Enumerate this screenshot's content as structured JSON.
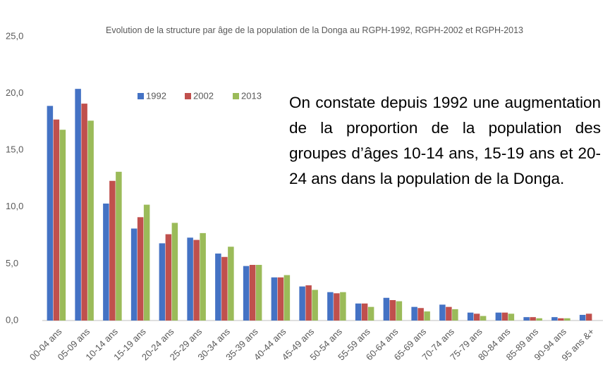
{
  "chart_data": {
    "type": "bar",
    "title": "Evolution de la structure par âge de la population de la Donga au RGPH-1992, RGPH-2002 et RGPH-2013",
    "annotation": "On constate depuis 1992 une augmentation de la proportion de la population des groupes d’âges 10-14 ans, 15-19 ans et 20-24 ans dans la population de la Donga.",
    "categories": [
      "00-04 ans",
      "05-09 ans",
      "10-14 ans",
      "15-19 ans",
      "20-24 ans",
      "25-29 ans",
      "30-34 ans",
      "35-39 ans",
      "40-44 ans",
      "45-49 ans",
      "50-54 ans",
      "55-59 ans",
      "60-64 ans",
      "65-69 ans",
      "70-74 ans",
      "75-79 ans",
      "80-84 ans",
      "85-89 ans",
      "90-94 ans",
      "95 ans &+"
    ],
    "series": [
      {
        "name": "1992",
        "color": "#4472c4",
        "values": [
          18.9,
          20.4,
          10.3,
          8.1,
          6.8,
          7.3,
          5.9,
          4.8,
          3.8,
          3.0,
          2.5,
          1.5,
          2.0,
          1.2,
          1.4,
          0.7,
          0.7,
          0.3,
          0.3,
          0.5
        ]
      },
      {
        "name": "2002",
        "color": "#c0504d",
        "values": [
          17.7,
          19.1,
          12.3,
          9.1,
          7.6,
          7.1,
          5.6,
          4.9,
          3.8,
          3.1,
          2.4,
          1.5,
          1.8,
          1.1,
          1.2,
          0.6,
          0.7,
          0.3,
          0.2,
          0.6
        ]
      },
      {
        "name": "2013",
        "color": "#9bbb59",
        "values": [
          16.8,
          17.6,
          13.1,
          10.2,
          8.6,
          7.7,
          6.5,
          4.9,
          4.0,
          2.7,
          2.5,
          1.2,
          1.7,
          0.8,
          1.0,
          0.4,
          0.6,
          0.2,
          0.2,
          null
        ]
      }
    ],
    "ylim": [
      0,
      25
    ],
    "yticks": [
      {
        "value": 0,
        "label": "0,0"
      },
      {
        "value": 5,
        "label": "5,0"
      },
      {
        "value": 10,
        "label": "10,0"
      },
      {
        "value": 15,
        "label": "15,0"
      },
      {
        "value": 20,
        "label": "20,0"
      },
      {
        "value": 25,
        "label": "25,0"
      }
    ],
    "legend": "top"
  }
}
